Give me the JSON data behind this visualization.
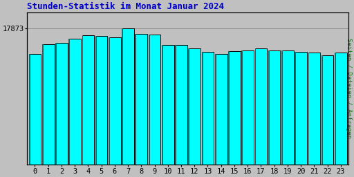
{
  "title": "Stunden-Statistik im Monat Januar 2024",
  "ylabel": "Seiten / Dateien / Anfragen",
  "xlabel_values": [
    "0",
    "1",
    "2",
    "3",
    "4",
    "5",
    "6",
    "7",
    "8",
    "9",
    "10",
    "11",
    "12",
    "13",
    "14",
    "15",
    "16",
    "17",
    "18",
    "19",
    "20",
    "21",
    "22",
    "23"
  ],
  "ytick_label": "17873",
  "values": [
    14500,
    15800,
    16000,
    16500,
    17000,
    16900,
    16700,
    17873,
    17200,
    17100,
    15700,
    15700,
    15300,
    14800,
    14500,
    14900,
    15000,
    15300,
    15000,
    15000,
    14800,
    14700,
    14400,
    14750
  ],
  "max_value": 17873,
  "bar_face_color": "#00FFFF",
  "bar_edge_color": "#000000",
  "bar_shadow_color": "#007070",
  "background_color": "#C0C0C0",
  "plot_bg_color": "#C0C0C0",
  "title_color": "#0000CC",
  "ylabel_color": "#008800",
  "tick_color": "#000000",
  "title_fontsize": 9,
  "ylabel_fontsize": 6.5,
  "tick_fontsize": 7.5
}
